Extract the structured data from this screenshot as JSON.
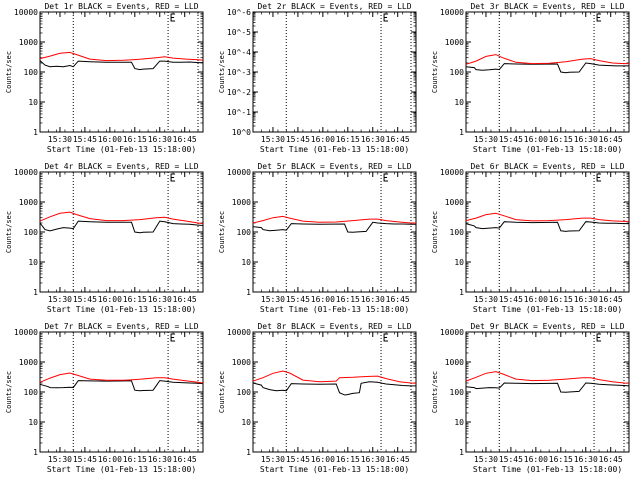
{
  "chart_data": [
    {
      "type": "line",
      "title": "Det 1r BLACK = Events, RED = LLD",
      "ylabel": "Counts/sec",
      "xlabel": "Start Time (01-Feb-13 15:18:00)",
      "yscale": "log",
      "ylim": [
        1,
        10000
      ],
      "yticks": [
        "1",
        "10",
        "100",
        "1000",
        "10000"
      ],
      "xticks": [
        "15:30",
        "15:45",
        "16:00",
        "16:15",
        "16:30",
        "16:45"
      ],
      "x_minutes_after_start": [
        12,
        27,
        42,
        57,
        72,
        87
      ],
      "xlim_minutes": [
        0,
        98
      ],
      "vlines_minutes": [
        20,
        77,
        95
      ],
      "series": [
        {
          "name": "Events",
          "color": "#000000",
          "x": [
            0,
            3,
            6,
            10,
            14,
            18,
            20,
            23,
            30,
            40,
            55,
            57,
            60,
            62,
            68,
            72,
            75,
            80,
            85,
            90,
            95,
            98
          ],
          "y": [
            240,
            170,
            150,
            155,
            150,
            165,
            150,
            230,
            220,
            210,
            210,
            130,
            120,
            125,
            130,
            230,
            230,
            210,
            210,
            215,
            205,
            205
          ]
        },
        {
          "name": "LLD",
          "color": "#ff0000",
          "x": [
            0,
            6,
            12,
            18,
            22,
            30,
            40,
            50,
            60,
            70,
            75,
            80,
            88,
            95,
            98
          ],
          "y": [
            280,
            340,
            420,
            450,
            380,
            270,
            240,
            245,
            265,
            300,
            320,
            290,
            270,
            255,
            250
          ]
        }
      ]
    },
    {
      "type": "line",
      "title": "Det 2r BLACK = Events, RED = LLD",
      "ylabel": "Counts/sec",
      "xlabel": "Start Time (01-Feb-13 15:18:00)",
      "yscale": "log",
      "ylim": [
        1,
        1e-06
      ],
      "yticks": [
        "10^0",
        "10^-1",
        "10^-2",
        "10^-3",
        "10^-4",
        "10^-5",
        "10^-6"
      ],
      "xticks": [
        "15:30",
        "15:45",
        "16:00",
        "16:15",
        "16:30",
        "16:45"
      ],
      "x_minutes_after_start": [
        12,
        27,
        42,
        57,
        72,
        87
      ],
      "xlim_minutes": [
        0,
        98
      ],
      "vlines_minutes": [
        20,
        77,
        95
      ],
      "series": []
    },
    {
      "type": "line",
      "title": "Det 3r BLACK = Events, RED = LLD",
      "ylabel": "Counts/sec",
      "xlabel": "Start Time (01-Feb-13 15:18:00)",
      "yscale": "log",
      "ylim": [
        1,
        10000
      ],
      "yticks": [
        "1",
        "10",
        "100",
        "1000",
        "10000"
      ],
      "xticks": [
        "15:30",
        "15:45",
        "16:00",
        "16:15",
        "16:30",
        "16:45"
      ],
      "x_minutes_after_start": [
        12,
        27,
        42,
        57,
        72,
        87
      ],
      "xlim_minutes": [
        0,
        98
      ],
      "vlines_minutes": [
        20,
        77,
        95
      ],
      "series": [
        {
          "name": "Events",
          "color": "#000000",
          "x": [
            0,
            5,
            6,
            10,
            14,
            18,
            20,
            23,
            30,
            40,
            55,
            57,
            60,
            62,
            68,
            72,
            75,
            80,
            85,
            90,
            95,
            98
          ],
          "y": [
            150,
            140,
            120,
            115,
            118,
            125,
            120,
            190,
            185,
            180,
            185,
            100,
            95,
            98,
            100,
            200,
            190,
            170,
            165,
            160,
            160,
            160
          ]
        },
        {
          "name": "LLD",
          "color": "#ff0000",
          "x": [
            0,
            6,
            12,
            18,
            22,
            30,
            40,
            50,
            60,
            70,
            75,
            80,
            88,
            95,
            98
          ],
          "y": [
            180,
            230,
            330,
            380,
            300,
            210,
            190,
            195,
            220,
            270,
            280,
            240,
            200,
            190,
            190
          ]
        }
      ]
    },
    {
      "type": "line",
      "title": "Det 4r BLACK = Events, RED = LLD",
      "ylabel": "Counts/sec",
      "xlabel": "Start Time (01-Feb-13 15:18:00)",
      "yscale": "log",
      "ylim": [
        1,
        10000
      ],
      "yticks": [
        "1",
        "10",
        "100",
        "1000",
        "10000"
      ],
      "xticks": [
        "15:30",
        "15:45",
        "16:00",
        "16:15",
        "16:30",
        "16:45"
      ],
      "x_minutes_after_start": [
        12,
        27,
        42,
        57,
        72,
        87
      ],
      "xlim_minutes": [
        0,
        98
      ],
      "vlines_minutes": [
        20,
        77,
        95
      ],
      "series": [
        {
          "name": "Events",
          "color": "#000000",
          "x": [
            0,
            3,
            6,
            10,
            14,
            18,
            20,
            23,
            30,
            40,
            55,
            57,
            60,
            62,
            68,
            72,
            75,
            80,
            85,
            90,
            95,
            98
          ],
          "y": [
            200,
            120,
            110,
            125,
            140,
            135,
            130,
            230,
            220,
            210,
            210,
            100,
            95,
            98,
            100,
            230,
            220,
            190,
            185,
            180,
            170,
            165
          ]
        },
        {
          "name": "LLD",
          "color": "#ff0000",
          "x": [
            0,
            6,
            12,
            18,
            22,
            30,
            40,
            50,
            60,
            70,
            75,
            80,
            88,
            95,
            98
          ],
          "y": [
            230,
            320,
            420,
            460,
            380,
            280,
            240,
            240,
            260,
            300,
            310,
            270,
            230,
            200,
            190
          ]
        }
      ]
    },
    {
      "type": "line",
      "title": "Det 5r BLACK = Events, RED = LLD",
      "ylabel": "Counts/sec",
      "xlabel": "Start Time (01-Feb-13 15:18:00)",
      "yscale": "log",
      "ylim": [
        1,
        10000
      ],
      "yticks": [
        "1",
        "10",
        "100",
        "1000",
        "10000"
      ],
      "xticks": [
        "15:30",
        "15:45",
        "16:00",
        "16:15",
        "16:30",
        "16:45"
      ],
      "x_minutes_after_start": [
        12,
        27,
        42,
        57,
        72,
        87
      ],
      "xlim_minutes": [
        0,
        98
      ],
      "vlines_minutes": [
        20,
        77,
        95
      ],
      "series": [
        {
          "name": "Events",
          "color": "#000000",
          "x": [
            0,
            5,
            6,
            10,
            14,
            18,
            20,
            23,
            30,
            40,
            55,
            57,
            60,
            62,
            68,
            72,
            75,
            80,
            85,
            90,
            95,
            98
          ],
          "y": [
            150,
            140,
            120,
            110,
            115,
            120,
            115,
            190,
            185,
            180,
            185,
            100,
            98,
            100,
            105,
            210,
            200,
            190,
            185,
            185,
            180,
            180
          ]
        },
        {
          "name": "LLD",
          "color": "#ff0000",
          "x": [
            0,
            6,
            12,
            18,
            22,
            30,
            40,
            50,
            60,
            70,
            75,
            80,
            88,
            95,
            98
          ],
          "y": [
            200,
            240,
            300,
            330,
            290,
            230,
            210,
            215,
            240,
            270,
            270,
            240,
            215,
            200,
            200
          ]
        }
      ]
    },
    {
      "type": "line",
      "title": "Det 6r BLACK = Events, RED = LLD",
      "ylabel": "Counts/sec",
      "xlabel": "Start Time (01-Feb-13 15:18:00)",
      "yscale": "log",
      "ylim": [
        1,
        10000
      ],
      "yticks": [
        "1",
        "10",
        "100",
        "1000",
        "10000"
      ],
      "xticks": [
        "15:30",
        "15:45",
        "16:00",
        "16:15",
        "16:30",
        "16:45"
      ],
      "x_minutes_after_start": [
        12,
        27,
        42,
        57,
        72,
        87
      ],
      "xlim_minutes": [
        0,
        98
      ],
      "vlines_minutes": [
        20,
        77,
        95
      ],
      "series": [
        {
          "name": "Events",
          "color": "#000000",
          "x": [
            0,
            5,
            6,
            10,
            14,
            18,
            20,
            23,
            30,
            40,
            55,
            57,
            60,
            62,
            68,
            72,
            75,
            80,
            85,
            90,
            95,
            98
          ],
          "y": [
            190,
            160,
            140,
            130,
            135,
            140,
            135,
            220,
            210,
            205,
            210,
            110,
            105,
            108,
            110,
            220,
            215,
            200,
            195,
            195,
            190,
            190
          ]
        },
        {
          "name": "LLD",
          "color": "#ff0000",
          "x": [
            0,
            6,
            12,
            18,
            22,
            30,
            40,
            50,
            60,
            70,
            75,
            80,
            88,
            95,
            98
          ],
          "y": [
            240,
            290,
            380,
            420,
            360,
            260,
            235,
            240,
            260,
            290,
            290,
            260,
            235,
            225,
            225
          ]
        }
      ]
    },
    {
      "type": "line",
      "title": "Det 7r BLACK = Events, RED = LLD",
      "ylabel": "Counts/sec",
      "xlabel": "Start Time (01-Feb-13 15:18:00)",
      "yscale": "log",
      "ylim": [
        1,
        10000
      ],
      "yticks": [
        "1",
        "10",
        "100",
        "1000",
        "10000"
      ],
      "xticks": [
        "15:30",
        "15:45",
        "16:00",
        "16:15",
        "16:30",
        "16:45"
      ],
      "x_minutes_after_start": [
        12,
        27,
        42,
        57,
        72,
        87
      ],
      "xlim_minutes": [
        0,
        98
      ],
      "vlines_minutes": [
        20,
        77,
        95
      ],
      "series": [
        {
          "name": "Events",
          "color": "#000000",
          "x": [
            0,
            5,
            6,
            10,
            14,
            18,
            20,
            23,
            30,
            40,
            55,
            57,
            60,
            62,
            68,
            72,
            75,
            80,
            85,
            90,
            95,
            98
          ],
          "y": [
            180,
            150,
            140,
            138,
            140,
            145,
            140,
            240,
            235,
            230,
            235,
            115,
            110,
            112,
            115,
            240,
            230,
            210,
            205,
            200,
            195,
            190
          ]
        },
        {
          "name": "LLD",
          "color": "#ff0000",
          "x": [
            0,
            6,
            12,
            18,
            22,
            30,
            40,
            50,
            60,
            70,
            75,
            80,
            88,
            95,
            98
          ],
          "y": [
            210,
            290,
            380,
            430,
            370,
            270,
            245,
            245,
            265,
            300,
            300,
            270,
            235,
            210,
            200
          ]
        }
      ]
    },
    {
      "type": "line",
      "title": "Det 8r BLACK = Events, RED = LLD",
      "ylabel": "Counts/sec",
      "xlabel": "Start Time (01-Feb-13 15:18:00)",
      "yscale": "log",
      "ylim": [
        1,
        10000
      ],
      "yticks": [
        "1",
        "10",
        "100",
        "1000",
        "10000"
      ],
      "xticks": [
        "15:30",
        "15:45",
        "16:00",
        "16:15",
        "16:30",
        "16:45"
      ],
      "x_minutes_after_start": [
        12,
        27,
        42,
        57,
        72,
        87
      ],
      "xlim_minutes": [
        0,
        98
      ],
      "vlines_minutes": [
        20,
        77,
        95
      ],
      "series": [
        {
          "name": "Events",
          "color": "#000000",
          "x": [
            0,
            5,
            6,
            10,
            14,
            18,
            20,
            23,
            30,
            40,
            50,
            52,
            55,
            56,
            60,
            64,
            65,
            70,
            75,
            80,
            85,
            90,
            95,
            98
          ],
          "y": [
            200,
            170,
            140,
            120,
            110,
            115,
            110,
            190,
            185,
            180,
            185,
            95,
            80,
            80,
            90,
            95,
            195,
            220,
            210,
            185,
            175,
            165,
            160,
            160
          ]
        },
        {
          "name": "LLD",
          "color": "#ff0000",
          "x": [
            0,
            6,
            12,
            18,
            22,
            30,
            40,
            50,
            52,
            60,
            70,
            75,
            80,
            88,
            95,
            98
          ],
          "y": [
            230,
            300,
            420,
            500,
            430,
            250,
            220,
            230,
            300,
            310,
            330,
            340,
            280,
            220,
            200,
            195
          ]
        }
      ]
    },
    {
      "type": "line",
      "title": "Det 9r BLACK = Events, RED = LLD",
      "ylabel": "Counts/sec",
      "xlabel": "Start Time (01-Feb-13 15:18:00)",
      "yscale": "log",
      "ylim": [
        1,
        10000
      ],
      "yticks": [
        "1",
        "10",
        "100",
        "1000",
        "10000"
      ],
      "xticks": [
        "15:30",
        "15:45",
        "16:00",
        "16:15",
        "16:30",
        "16:45"
      ],
      "x_minutes_after_start": [
        12,
        27,
        42,
        57,
        72,
        87
      ],
      "xlim_minutes": [
        0,
        98
      ],
      "vlines_minutes": [
        20,
        77,
        95
      ],
      "series": [
        {
          "name": "Events",
          "color": "#000000",
          "x": [
            0,
            5,
            6,
            10,
            14,
            18,
            20,
            23,
            30,
            40,
            55,
            57,
            60,
            62,
            68,
            72,
            75,
            80,
            85,
            90,
            95,
            98
          ],
          "y": [
            150,
            140,
            130,
            135,
            140,
            138,
            135,
            200,
            195,
            190,
            195,
            100,
            98,
            100,
            105,
            200,
            195,
            180,
            175,
            170,
            165,
            160
          ]
        },
        {
          "name": "LLD",
          "color": "#ff0000",
          "x": [
            0,
            6,
            12,
            18,
            22,
            30,
            40,
            50,
            60,
            70,
            75,
            80,
            88,
            95,
            98
          ],
          "y": [
            230,
            310,
            420,
            480,
            400,
            270,
            240,
            245,
            270,
            300,
            300,
            260,
            220,
            200,
            195
          ]
        }
      ]
    }
  ]
}
